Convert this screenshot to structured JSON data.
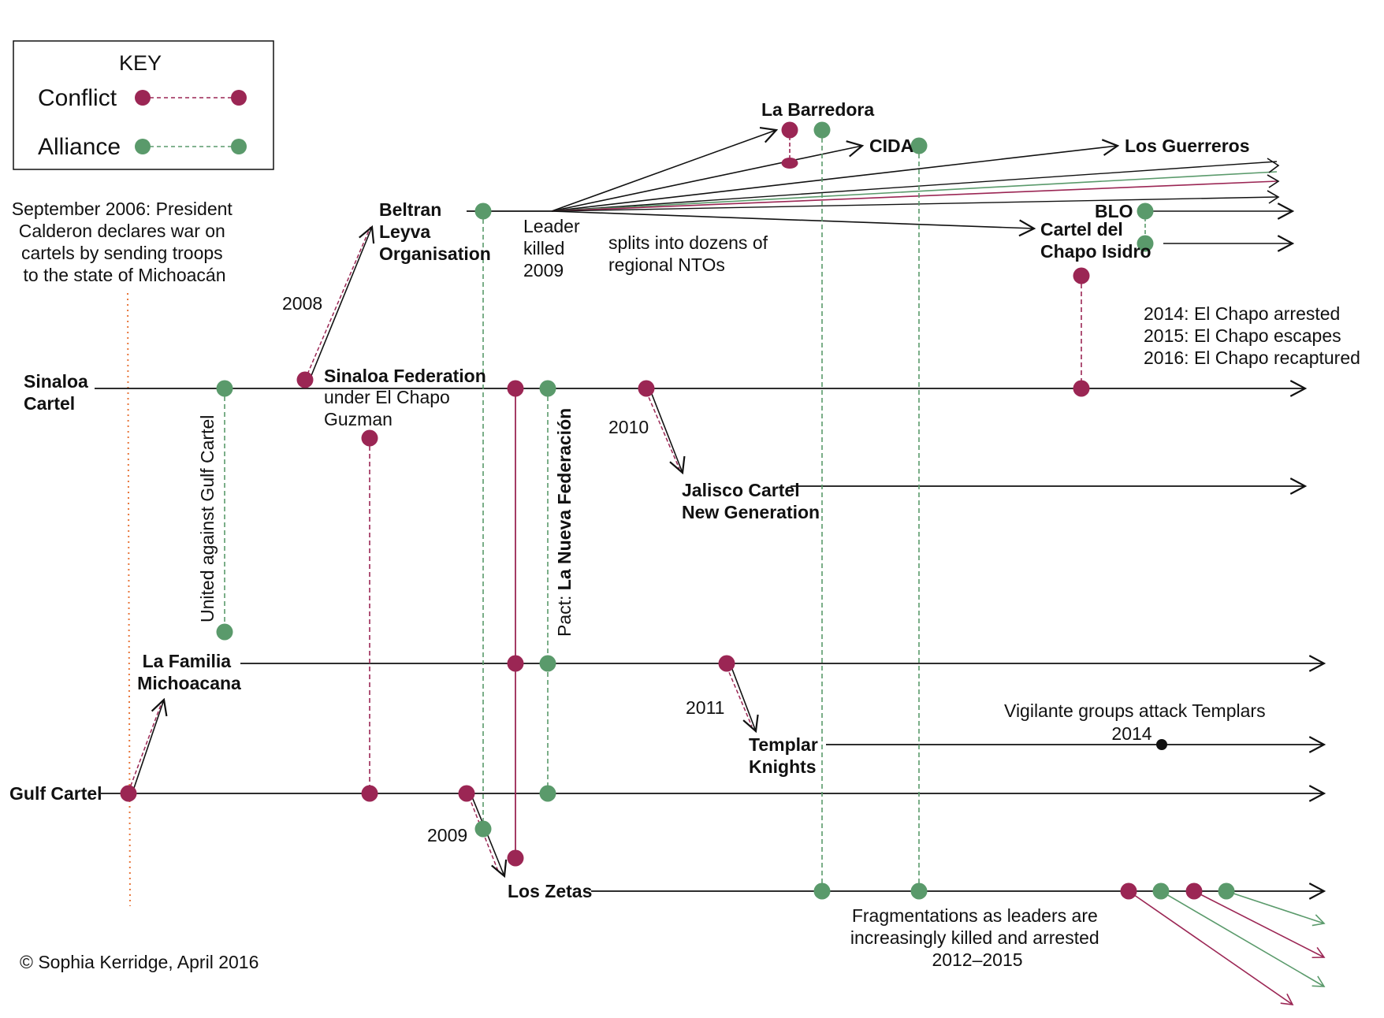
{
  "key": {
    "title": "KEY",
    "conflict_label": "Conflict",
    "alliance_label": "Alliance"
  },
  "colors": {
    "conflict": "#9b2654",
    "alliance": "#5a9a6b",
    "timeline": "#111111",
    "war_marker": "#e8763a"
  },
  "intro_note": [
    "September 2006: President",
    "Calderon declares war on",
    "cartels by sending troops",
    "to the state of Michoacán"
  ],
  "cartels": {
    "sinaloa": [
      "Sinaloa",
      "Cartel"
    ],
    "sinaloa_federation": [
      "Sinaloa Federation"
    ],
    "sinaloa_federation_sub": [
      "under El Chapo",
      "Guzman"
    ],
    "beltran_leyva": [
      "Beltran",
      "Leyva",
      "Organisation"
    ],
    "la_familia": [
      "La Familia",
      "Michoacana"
    ],
    "gulf": [
      "Gulf Cartel"
    ],
    "los_zetas": [
      "Los Zetas"
    ],
    "jalisco": [
      "Jalisco Cartel",
      "New Generation"
    ],
    "templar": [
      "Templar",
      "Knights"
    ],
    "la_barredora": [
      "La Barredora"
    ],
    "cida": [
      "CIDA"
    ],
    "los_guerreros": [
      "Los Guerreros"
    ],
    "blo": [
      "BLO"
    ],
    "cartel_del_chapo": [
      "Cartel del",
      "Chapo Isidro"
    ]
  },
  "notes": {
    "year_2008": "2008",
    "leader_killed": [
      "Leader",
      "killed",
      "2009"
    ],
    "splits": [
      "splits into dozens of",
      "regional NTOs"
    ],
    "el_chapo": [
      "2014: El Chapo arrested",
      "2015: El Chapo escapes",
      "2016: El Chapo recaptured"
    ],
    "year_2010": "2010",
    "year_2011": "2011",
    "vigilante": [
      "Vigilante groups attack Templars",
      "2014"
    ],
    "year_2009": "2009",
    "fragmentation": [
      "Fragmentations as leaders are",
      "increasingly killed and arrested",
      "2012–2015"
    ],
    "united_against_gulf": "United against  Gulf Cartel",
    "pact_prefix": "Pact: ",
    "pact_name": "La Nueva Federación",
    "copyright": "© Sophia Kerridge, April 2016"
  }
}
